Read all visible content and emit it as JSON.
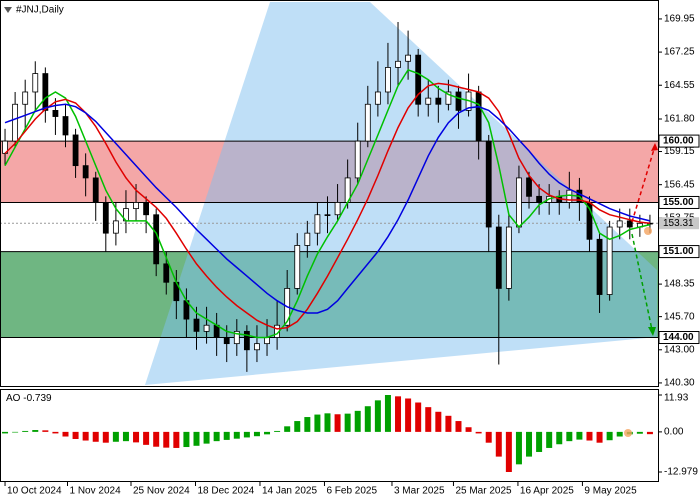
{
  "chart_data": [
    {
      "type": "candlestick",
      "title": "#JNJ,Daily",
      "xlim": [
        -0.5,
        64.8
      ],
      "ylim": [
        140.05,
        171.33
      ],
      "xticks": [
        {
          "value": 0,
          "label": "10 Oct 2024"
        },
        {
          "value": 6.2,
          "label": "1 Nov 2024"
        },
        {
          "value": 12.5,
          "label": "25 Nov 2024"
        },
        {
          "value": 18.9,
          "label": "18 Dec 2024"
        },
        {
          "value": 25.3,
          "label": "14 Jan 2025"
        },
        {
          "value": 31.7,
          "label": "6 Feb 2025"
        },
        {
          "value": 38.4,
          "label": "3 Mar 2025"
        },
        {
          "value": 44.5,
          "label": "25 Mar 2025"
        },
        {
          "value": 50.9,
          "label": "16 Apr 2025"
        },
        {
          "value": 57.3,
          "label": "9 May 2025"
        }
      ],
      "yticks": [
        169.95,
        167.25,
        164.55,
        {
          "value": 161.8,
          "label": "161.80"
        },
        159.15,
        156.45,
        153.75,
        148.35,
        {
          "value": 145.7,
          "label": "145.70"
        },
        {
          "value": 143,
          "label": "143.00"
        },
        {
          "value": 140.3,
          "label": "140.30"
        }
      ],
      "open": [
        159,
        160,
        163,
        164,
        165.5,
        162.5,
        162,
        160.5,
        158,
        157,
        155,
        152.5,
        153.5,
        154.5,
        155,
        154,
        150,
        148.5,
        147,
        145.5,
        144.5,
        145,
        144,
        143.5,
        144.5,
        143,
        143.5,
        144,
        145,
        148,
        151.5,
        152.5,
        154,
        154,
        155,
        157,
        160,
        163,
        164,
        166,
        166.5,
        167,
        163,
        163.5,
        163,
        164,
        162.5,
        164,
        160,
        153,
        148,
        153,
        157,
        155.5,
        155,
        155.5,
        155,
        156,
        155,
        152,
        147.5,
        153,
        153.5,
        153,
        153.3
      ],
      "high": [
        161,
        164,
        165,
        166.5,
        166,
        163.5,
        163,
        161,
        159,
        157.5,
        155.5,
        155,
        156,
        156.5,
        155.5,
        154.5,
        151,
        149.5,
        148,
        146.5,
        146.5,
        146,
        145,
        145.5,
        145,
        145,
        145.5,
        147,
        149.5,
        152.5,
        153.5,
        155,
        155.5,
        156.5,
        158.5,
        161.5,
        164.5,
        166.5,
        168,
        169.7,
        169,
        167.5,
        165,
        164.5,
        165,
        164.5,
        165.5,
        164.5,
        160.5,
        154,
        154,
        158,
        157.5,
        156.5,
        156.5,
        156,
        157.5,
        157,
        155.5,
        152.5,
        153.5,
        154.5,
        154.5,
        154,
        154
      ],
      "low": [
        158,
        159.5,
        161,
        162.5,
        161.5,
        160.5,
        159.5,
        157,
        155.5,
        153.5,
        151,
        151.5,
        152.5,
        153.5,
        152.5,
        149,
        147.5,
        145.5,
        144,
        143,
        143.5,
        142.5,
        142,
        142.5,
        141.2,
        142,
        142.5,
        143,
        144.5,
        147.5,
        150.5,
        151.5,
        152.5,
        153.5,
        154.5,
        156.5,
        159.5,
        162,
        163,
        164.5,
        165,
        162,
        162,
        161.5,
        162.5,
        161,
        162,
        158.5,
        151,
        141.8,
        147,
        152.5,
        154.5,
        154,
        154,
        154,
        154.5,
        153.5,
        151,
        146,
        147,
        152,
        152,
        152.2,
        152.5
      ],
      "close": [
        160,
        163,
        164,
        165.5,
        162.5,
        162,
        160.5,
        158,
        157,
        155,
        152.5,
        153.5,
        154.5,
        155,
        154,
        150,
        148.5,
        147,
        145.5,
        144.5,
        145,
        144,
        143.5,
        144.5,
        143,
        143.5,
        144,
        145,
        148,
        151.5,
        152.5,
        154,
        154,
        155,
        157,
        160,
        163,
        164,
        166,
        166.5,
        167,
        163,
        163.5,
        163,
        164,
        162.5,
        164,
        160,
        153,
        148,
        153,
        157,
        155.5,
        155,
        155.5,
        155,
        156,
        155,
        152,
        147.5,
        153,
        153.5,
        153,
        153.3,
        153.31
      ],
      "candle_color": "#000000",
      "up_body": "#ffffff",
      "down_body": "#000000",
      "series": [
        {
          "color": "#00c000",
          "values": [
            158,
            159.5,
            161,
            162.5,
            163.5,
            164,
            163.5,
            162,
            160,
            158,
            156,
            154.5,
            153.5,
            153.5,
            153.5,
            152.5,
            150.5,
            148.5,
            147,
            146,
            145.5,
            145,
            144.5,
            144.3,
            144.2,
            144,
            144,
            144.3,
            145.3,
            147,
            149,
            150.8,
            152.2,
            153.5,
            155,
            156.5,
            158.5,
            160.5,
            162.5,
            164.5,
            165.8,
            165.5,
            165,
            164.3,
            163.8,
            163.5,
            163.3,
            163,
            161.5,
            158,
            154,
            153,
            153.8,
            154.8,
            155.3,
            155.5,
            155.6,
            155.5,
            154.5,
            152.5,
            152,
            152.3,
            152.8,
            153,
            153.2
          ]
        },
        {
          "color": "#e00000",
          "values": [
            159,
            159.8,
            160.8,
            161.8,
            162.6,
            163.2,
            163.4,
            163.1,
            162.3,
            161.2,
            159.8,
            158.3,
            157,
            156,
            155.3,
            154.6,
            153.7,
            152.5,
            151.2,
            150,
            149,
            148.1,
            147.3,
            146.6,
            146,
            145.4,
            145,
            144.7,
            144.8,
            145.3,
            146.3,
            147.6,
            149,
            150.5,
            152,
            153.6,
            155.3,
            157.2,
            159.2,
            161.1,
            162.7,
            163.8,
            164.5,
            164.7,
            164.6,
            164.4,
            164.2,
            164,
            163.5,
            162.4,
            160.6,
            158.6,
            157.2,
            156.2,
            155.6,
            155.3,
            155.2,
            155.2,
            155,
            154.4,
            154,
            153.8,
            153.6,
            153.4,
            153.3
          ]
        },
        {
          "color": "#0000e0",
          "values": [
            161.5,
            161.8,
            162.1,
            162.4,
            162.7,
            162.9,
            163,
            162.8,
            162.3,
            161.6,
            160.7,
            159.8,
            158.9,
            158,
            157.1,
            156.2,
            155.4,
            154.6,
            153.7,
            152.8,
            152,
            151.2,
            150.4,
            149.7,
            149,
            148.3,
            147.6,
            147,
            146.5,
            146.2,
            146,
            146,
            146.3,
            147,
            148,
            149,
            150,
            151,
            152.2,
            153.6,
            155.2,
            157,
            158.8,
            160.3,
            161.5,
            162.3,
            162.7,
            162.8,
            162.5,
            161.8,
            161,
            160.1,
            159.2,
            158.2,
            157.3,
            156.6,
            156.1,
            155.7,
            155.3,
            154.9,
            154.5,
            154.2,
            153.9,
            153.7,
            153.5
          ]
        }
      ],
      "levels": [
        {
          "value": 160,
          "label": "160.00"
        },
        {
          "value": 155,
          "label": "155.00"
        },
        {
          "value": 151,
          "label": "151.00"
        },
        {
          "value": 144,
          "label": "144.00"
        }
      ],
      "zone_colors": [
        "#f08a8a",
        "#3f9e58"
      ],
      "last_price": {
        "value": 153.31,
        "label": "153.31"
      }
    },
    {
      "type": "bar",
      "title": "AO",
      "ylim": [
        -12.979,
        11.93
      ],
      "yticks": [
        11.93,
        {
          "value": 0,
          "label": "0.00"
        },
        -12.979
      ],
      "values": [
        -0.5,
        -0.2,
        0.3,
        0.6,
        0.5,
        -0.5,
        -1.5,
        -2.3,
        -2.8,
        -3.2,
        -3.5,
        -3.2,
        -3,
        -3.4,
        -4.2,
        -4.8,
        -5.1,
        -5.2,
        -4.9,
        -4.5,
        -3.8,
        -3,
        -2.6,
        -2.2,
        -1.8,
        -1.4,
        -0.8,
        0.3,
        1.8,
        3.5,
        4.8,
        5.6,
        6,
        5.7,
        5.9,
        6.8,
        8.3,
        10.2,
        11.93,
        11.5,
        10.8,
        9.5,
        8,
        6.5,
        5.2,
        3.5,
        1.5,
        -0.5,
        -3.5,
        -8,
        -12.979,
        -10.5,
        -8,
        -6.5,
        -5.2,
        -4,
        -3,
        -2.5,
        -2.8,
        -3.5,
        -2.7,
        -1.5,
        -0.8,
        -0.6,
        -0.739
      ],
      "up_color": "#00a000",
      "down_color": "#e00000"
    }
  ]
}
